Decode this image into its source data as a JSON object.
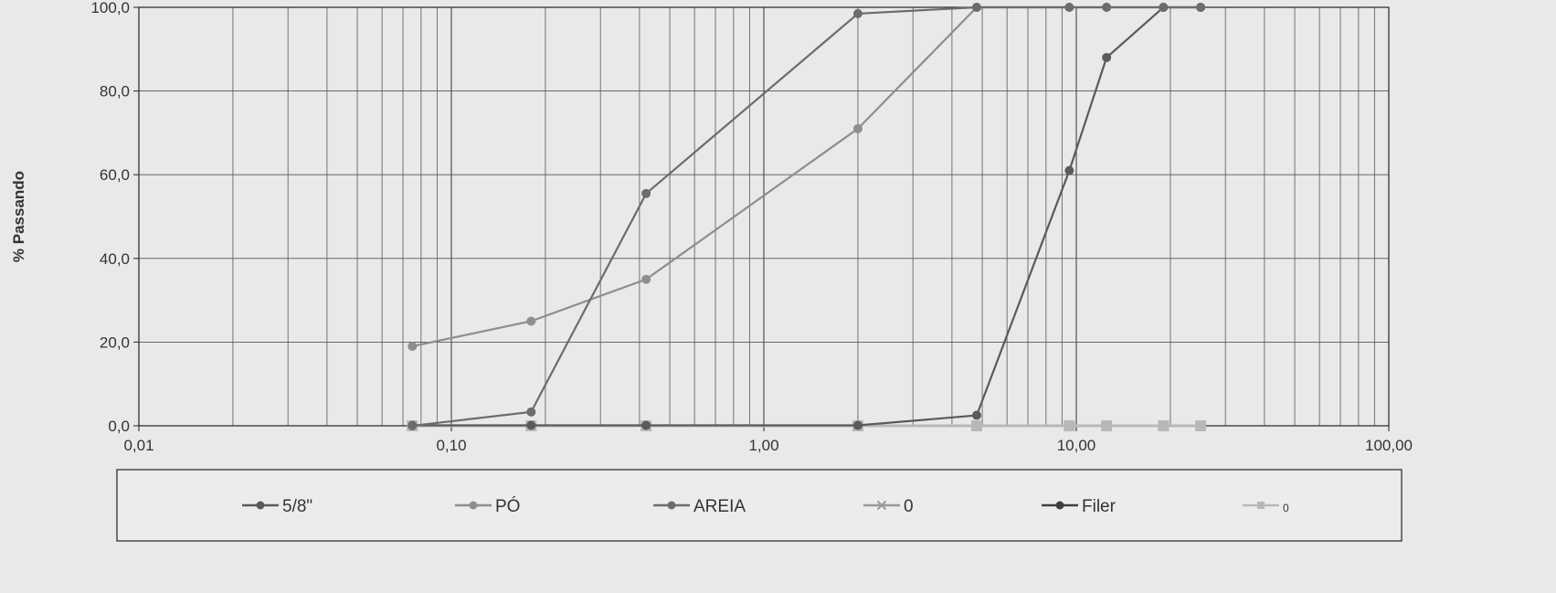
{
  "chart_data": {
    "type": "line",
    "title": "",
    "xlabel": "",
    "ylabel": "% Passando",
    "x_scale": "log",
    "xlim": [
      0.01,
      100
    ],
    "ylim": [
      0,
      100
    ],
    "x_ticks": [
      0.01,
      0.1,
      1,
      10,
      100
    ],
    "x_tick_labels": [
      "0,01",
      "0,10",
      "1,00",
      "10,00",
      "100,00"
    ],
    "y_ticks": [
      0,
      20,
      40,
      60,
      80,
      100
    ],
    "y_tick_labels": [
      "0,0",
      "20,0",
      "40,0",
      "60,0",
      "80,0",
      "100,0"
    ],
    "grid": true,
    "legend_position": "bottom",
    "series": [
      {
        "name": "5/8\"",
        "color": "#5a5a5a",
        "marker": "circle",
        "points": [
          [
            0.075,
            0.1
          ],
          [
            0.18,
            0.1
          ],
          [
            0.42,
            0.1
          ],
          [
            2.0,
            0.1
          ],
          [
            4.8,
            2.5
          ],
          [
            9.5,
            61.0
          ],
          [
            12.5,
            88.0
          ],
          [
            19.0,
            100.0
          ],
          [
            25.0,
            100.0
          ]
        ]
      },
      {
        "name": "PÓ",
        "color": "#8e8e8e",
        "marker": "circle",
        "points": [
          [
            0.075,
            19.0
          ],
          [
            0.18,
            25.0
          ],
          [
            0.42,
            35.0
          ],
          [
            2.0,
            71.0
          ],
          [
            4.8,
            100.0
          ],
          [
            9.5,
            100.0
          ],
          [
            12.5,
            100.0
          ],
          [
            19.0,
            100.0
          ],
          [
            25.0,
            100.0
          ]
        ]
      },
      {
        "name": "AREIA",
        "color": "#6c6c6c",
        "marker": "circle",
        "points": [
          [
            0.075,
            0.0
          ],
          [
            0.18,
            3.3
          ],
          [
            0.42,
            55.5
          ],
          [
            2.0,
            98.5
          ],
          [
            4.8,
            100.0
          ],
          [
            9.5,
            100.0
          ],
          [
            12.5,
            100.0
          ],
          [
            19.0,
            100.0
          ],
          [
            25.0,
            100.0
          ]
        ]
      },
      {
        "name": "0",
        "color": "#9a9a9a",
        "marker": "x",
        "points": [
          [
            0.075,
            0.0
          ],
          [
            0.18,
            0.0
          ],
          [
            0.42,
            0.0
          ],
          [
            2.0,
            0.0
          ],
          [
            4.8,
            0.0
          ],
          [
            9.5,
            0.0
          ],
          [
            12.5,
            0.0
          ],
          [
            19.0,
            0.0
          ],
          [
            25.0,
            0.0
          ]
        ]
      },
      {
        "name": "Filer",
        "color": "#3e3e3e",
        "marker": "circle",
        "points": []
      },
      {
        "name": "0",
        "color": "#b8b8b8",
        "marker": "square",
        "points": [
          [
            0.075,
            0.0
          ],
          [
            0.18,
            0.0
          ],
          [
            0.42,
            0.0
          ],
          [
            2.0,
            0.0
          ],
          [
            4.8,
            0.0
          ],
          [
            9.5,
            0.0
          ],
          [
            12.5,
            0.0
          ],
          [
            19.0,
            0.0
          ],
          [
            25.0,
            0.0
          ]
        ]
      }
    ]
  }
}
